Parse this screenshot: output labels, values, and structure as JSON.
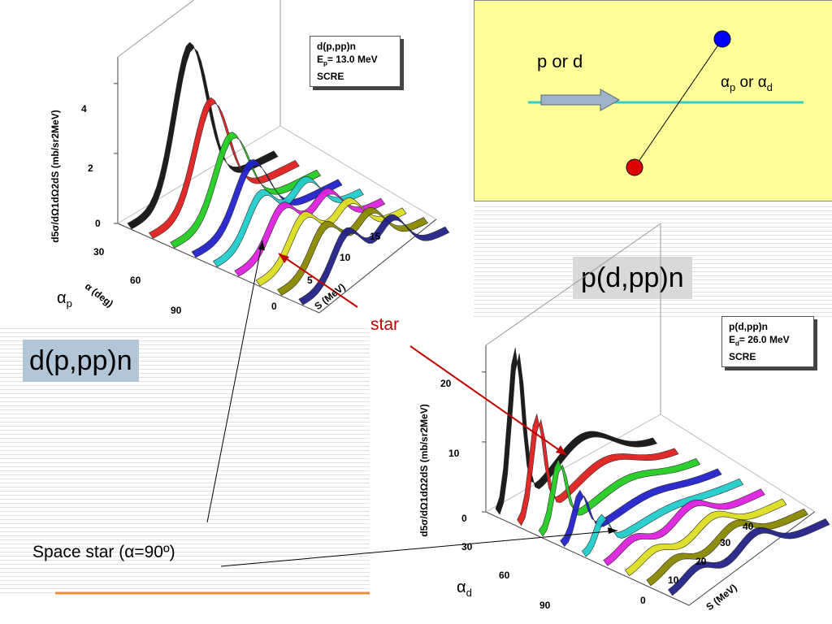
{
  "colors": {
    "diagram_bg": "#ffff99",
    "beam_line": "#33cccc",
    "arrow_fill": "#9fb3c8",
    "label_bg_left": "#b3c6d8",
    "label_bg_right": "#d9d9d9",
    "pointer_red": "#c00000",
    "underline": "#e69138",
    "proton_blue": "#0000ff",
    "proton_red": "#dd0000"
  },
  "diagram": {
    "projectile_label": "p or d",
    "alpha_label": "α",
    "alpha_sub": "p",
    "or_label": "or",
    "alpha2_label": "α",
    "alpha2_sub": "d"
  },
  "labels": {
    "left_reaction": "d(p,pp)n",
    "right_reaction": "p(d,pp)n",
    "star": "star",
    "space_star": "Space star (α=90º)",
    "alpha_p": "α",
    "alpha_p_sub": "p",
    "alpha_d": "α",
    "alpha_d_sub": "d"
  },
  "chart_data": [
    {
      "type": "3d-ribbon",
      "title": "",
      "legend": [
        "d(p,pp)n",
        "Ep= 13.0 MeV",
        "SCRE"
      ],
      "legend_line1": "d(p,pp)n",
      "legend_line2_main": "E",
      "legend_line2_sub": "p",
      "legend_line2_rest": "= 13.0 MeV",
      "legend_line3": "SCRE",
      "zlabel": "d⁵σ/dΩ₁dΩ₂dS (mb/sr²MeV)",
      "zlabel_text": "d5σ/dΩ1dΩ2dS  (mb/sr2MeV)",
      "alpha_label": "α (deg)",
      "s_label": "S (MeV)",
      "z_ticks": [
        "0",
        "2",
        "4"
      ],
      "alpha_ticks": [
        "30",
        "60",
        "90"
      ],
      "s_ticks": [
        "0",
        "5",
        "10",
        "15"
      ],
      "zlim": [
        0,
        5
      ],
      "series": [
        {
          "color": "#111111",
          "peak": 4.3
        },
        {
          "color": "#e02020",
          "peak": 3.0
        },
        {
          "color": "#22cc22",
          "peak": 2.3
        },
        {
          "color": "#2222cc",
          "peak": 1.8
        },
        {
          "color": "#22cccc",
          "peak": 1.6
        },
        {
          "color": "#dd22dd",
          "peak": 1.5
        },
        {
          "color": "#dddd22",
          "peak": 1.5
        },
        {
          "color": "#888800",
          "peak": 1.5
        },
        {
          "color": "#222288",
          "peak": 1.6
        }
      ]
    },
    {
      "type": "3d-ribbon",
      "title": "",
      "legend": [
        "p(d,pp)n",
        "Ed= 26.0 MeV",
        "SCRE"
      ],
      "legend_line1": "p(d,pp)n",
      "legend_line2_main": "E",
      "legend_line2_sub": "d",
      "legend_line2_rest": "= 26.0 MeV",
      "legend_line3": "SCRE",
      "zlabel_text": "d5σ/dΩ1dΩ2dS  (mb/sr2MeV)",
      "alpha_label": "",
      "s_label": "S (MeV)",
      "z_ticks": [
        "0",
        "10",
        "20"
      ],
      "alpha_ticks": [
        "30",
        "60",
        "90"
      ],
      "s_ticks": [
        "0",
        "10",
        "20",
        "30",
        "40"
      ],
      "zlim": [
        0,
        25
      ],
      "series": [
        {
          "color": "#111111",
          "peak": 22
        },
        {
          "color": "#e02020",
          "peak": 14
        },
        {
          "color": "#22cc22",
          "peak": 9
        },
        {
          "color": "#2222cc",
          "peak": 6
        },
        {
          "color": "#22cccc",
          "peak": 4
        },
        {
          "color": "#dd22dd",
          "peak": 3.2
        },
        {
          "color": "#dddd22",
          "peak": 3.0
        },
        {
          "color": "#888800",
          "peak": 3.2
        },
        {
          "color": "#222288",
          "peak": 3.6
        }
      ]
    }
  ]
}
